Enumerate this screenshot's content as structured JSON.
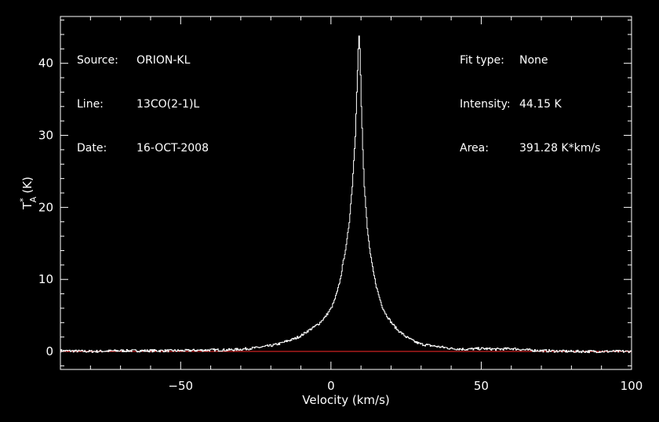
{
  "info_left": [
    {
      "label": "Source:",
      "value": "ORION-KL"
    },
    {
      "label": "Line:",
      "value": "13CO(2-1)L"
    },
    {
      "label": "Date:",
      "value": "16-OCT-2008"
    }
  ],
  "info_right": [
    {
      "label": "Fit type:",
      "value": "None"
    },
    {
      "label": "Intensity:",
      "value": "44.15 K"
    },
    {
      "label": "Area:",
      "value": "391.28 K*km/s"
    }
  ],
  "colors": {
    "background": "#000000",
    "axes": "#ffffff",
    "spectrum": "#ffffff",
    "baseline": "#ff2a2a"
  },
  "chart_data": {
    "type": "line",
    "title": "",
    "xlabel": "Velocity (km/s)",
    "ylabel": "T*A (K)",
    "ylabel_parts": {
      "symbol": "T",
      "superscript": "*",
      "subscript": "A",
      "unit": "(K)"
    },
    "xlim": [
      -90,
      100
    ],
    "ylim": [
      -2.5,
      46.5
    ],
    "xticks": [
      -50,
      0,
      50,
      100
    ],
    "yticks": [
      0,
      10,
      20,
      30,
      40
    ],
    "xtick_labels": [
      "−50",
      "0",
      "50",
      "100"
    ],
    "ytick_labels": [
      "0",
      "10",
      "20",
      "30",
      "40"
    ],
    "grid": false,
    "series": [
      {
        "style": "step",
        "color": "#ffffff",
        "x": [
          -90,
          -80,
          -70,
          -60,
          -50,
          -40,
          -35,
          -30,
          -25,
          -20,
          -17,
          -15,
          -12,
          -10,
          -8,
          -6,
          -4,
          -2,
          0,
          1,
          2,
          3,
          4,
          5,
          6,
          7,
          8,
          8.5,
          9,
          9.3,
          9.6,
          10,
          10.5,
          11,
          12,
          13,
          14,
          15,
          16,
          17,
          18,
          20,
          22,
          25,
          28,
          30,
          35,
          40,
          45,
          50,
          55,
          60,
          65,
          70,
          80,
          90,
          100
        ],
        "y": [
          0.1,
          0.0,
          0.1,
          0.1,
          0.1,
          0.2,
          0.2,
          0.3,
          0.5,
          0.8,
          1.1,
          1.4,
          1.8,
          2.2,
          2.8,
          3.3,
          3.9,
          4.8,
          6.0,
          7.0,
          8.3,
          10.0,
          12.5,
          14.7,
          18.0,
          23.0,
          30.0,
          36.0,
          42.0,
          44.15,
          41.0,
          34.0,
          28.0,
          23.0,
          17.0,
          13.5,
          11.0,
          9.0,
          7.5,
          6.2,
          5.3,
          4.0,
          3.0,
          2.0,
          1.3,
          1.0,
          0.7,
          0.4,
          0.3,
          0.4,
          0.3,
          0.4,
          0.2,
          0.1,
          0.0,
          0.0,
          0.0
        ]
      },
      {
        "style": "baseline",
        "color": "#ff2a2a",
        "x": [
          -90,
          100
        ],
        "y": [
          0,
          0
        ]
      }
    ]
  }
}
